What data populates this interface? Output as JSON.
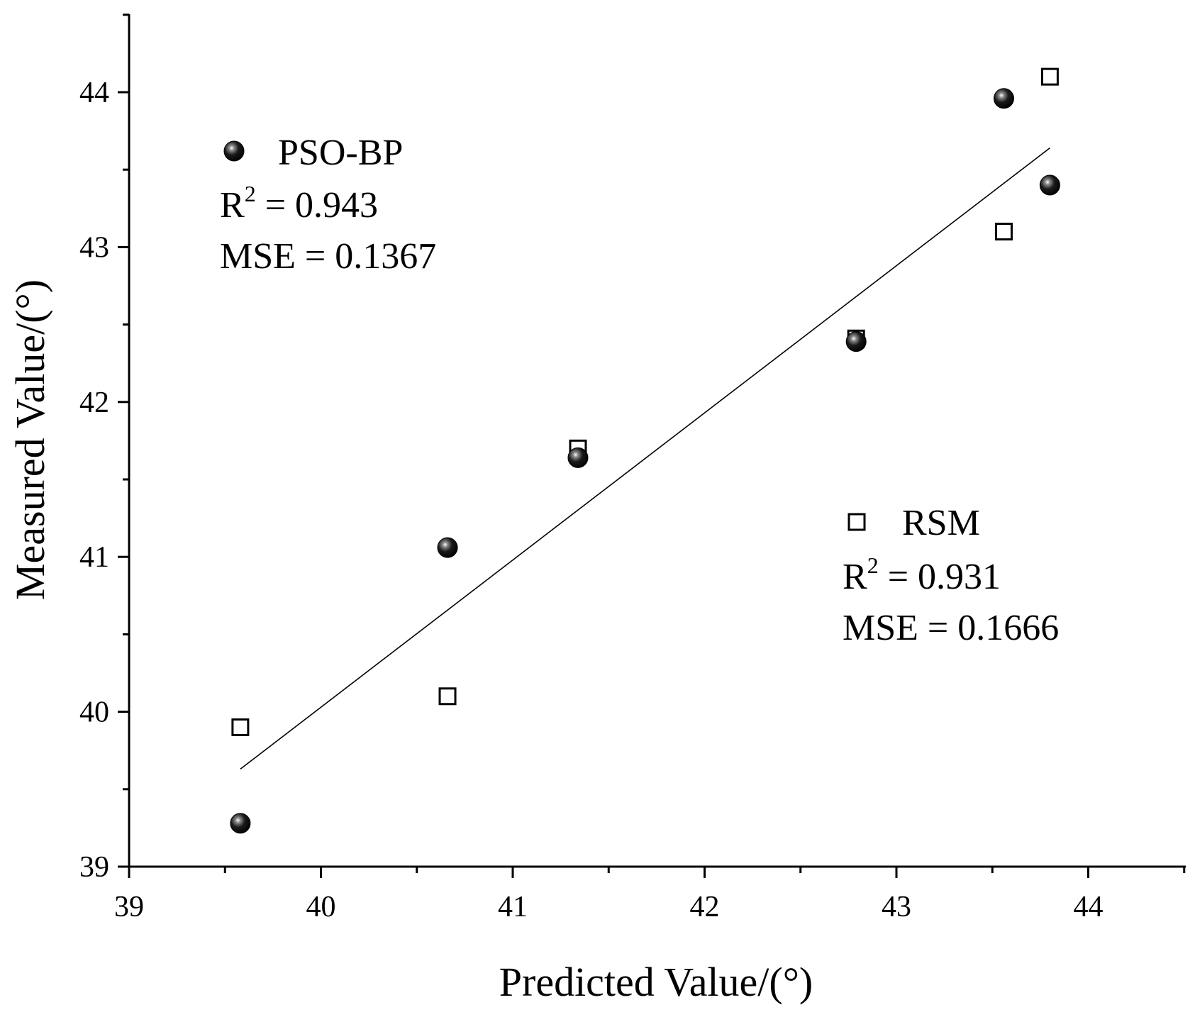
{
  "chart_data": {
    "type": "scatter",
    "title": "",
    "xlabel": "Predicted Value/(°)",
    "ylabel": "Measured Value/(°)",
    "xlim": [
      39,
      44.5
    ],
    "ylim": [
      39,
      44.5
    ],
    "x_ticks": [
      39,
      40,
      41,
      42,
      43,
      44
    ],
    "y_ticks": [
      39,
      40,
      41,
      42,
      43,
      44
    ],
    "x_tick_labels": [
      "39",
      "40",
      "41",
      "42",
      "43",
      "44"
    ],
    "y_tick_labels": [
      "39",
      "40",
      "41",
      "42",
      "43",
      "44"
    ],
    "minor_tick_step": 0.5,
    "grid": false,
    "series": [
      {
        "name": "PSO-BP",
        "marker": "filled-sphere",
        "color": "#000000",
        "x": [
          39.58,
          40.66,
          41.34,
          42.79,
          43.56,
          43.8
        ],
        "y": [
          39.28,
          41.06,
          41.64,
          42.39,
          43.96,
          43.4
        ],
        "r2_label": "R",
        "r2_sup": "2",
        "r2_value": " = 0.943",
        "mse_text": "MSE = 0.1367"
      },
      {
        "name": "RSM",
        "marker": "open-square",
        "color": "#000000",
        "x": [
          39.58,
          40.66,
          41.34,
          42.79,
          43.56,
          43.8
        ],
        "y": [
          39.9,
          40.1,
          41.7,
          42.41,
          43.1,
          44.1
        ],
        "r2_label": "R",
        "r2_sup": "2",
        "r2_value": " = 0.931",
        "mse_text": "MSE = 0.1666"
      }
    ],
    "fit_line": {
      "x": [
        39.58,
        43.8
      ],
      "y": [
        39.63,
        43.64
      ]
    }
  }
}
